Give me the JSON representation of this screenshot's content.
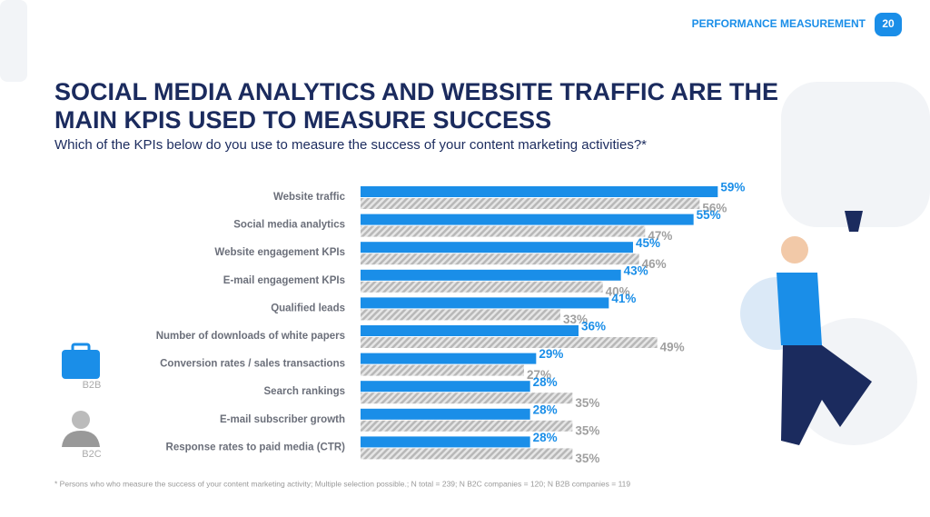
{
  "header": {
    "section": "PERFORMANCE MEASUREMENT",
    "page": "20"
  },
  "chart_data": {
    "type": "hbar",
    "title": [
      "SOCIAL MEDIA ANALYTICS AND WEBSITE TRAFFIC ARE THE",
      "MAIN KPIS USED TO MEASURE SUCCESS"
    ],
    "subtitle": "Which of the KPIs below do you use to measure the success of your content marketing activities?*",
    "categories": [
      "Website traffic",
      "Social media analytics",
      "Website engagement KPIs",
      "E-mail engagement KPIs",
      "Qualified leads",
      "Number of downloads of white papers",
      "Conversion rates / sales transactions",
      "Search rankings",
      "E-mail subscriber growth",
      "Response rates to paid media (CTR)"
    ],
    "series": [
      {
        "name": "B2B",
        "color": "#1a8ee8",
        "values": [
          59,
          55,
          45,
          43,
          41,
          36,
          29,
          28,
          28,
          28
        ],
        "value_labels": [
          "59%",
          "55%",
          "45%",
          "43%",
          "41%",
          "36%",
          "29%",
          "28%",
          "28%",
          "28%"
        ]
      },
      {
        "name": "B2C",
        "color": "#b8b8b8",
        "values": [
          56,
          47,
          46,
          40,
          33,
          49,
          27,
          35,
          35,
          35
        ],
        "value_labels": [
          "56%",
          "47%",
          "46%",
          "40%",
          "33%",
          "49%",
          "27%",
          "35%",
          "35%",
          "35%"
        ]
      }
    ],
    "xlim": [
      0,
      60
    ],
    "footnote": "* Persons who who measure the success of your content marketing activity; Multiple selection possible.; N total = 239; N B2C companies = 120; N B2B companies = 119"
  }
}
